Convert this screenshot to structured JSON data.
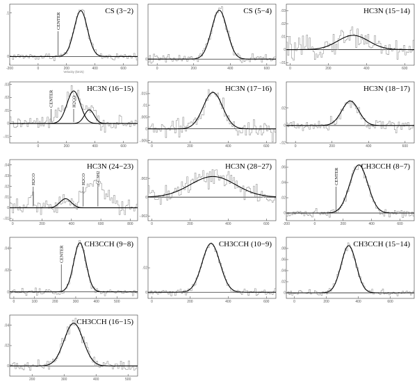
{
  "figure": {
    "chart_data": [
      {
        "type": "line",
        "title": "CS (3−2)",
        "xlabel": "Velocity (km/s)",
        "xlim": [
          -200,
          700
        ],
        "ylim": [
          -0.02,
          0.12
        ],
        "xticks": [
          -200,
          0,
          200,
          400,
          600
        ],
        "yticks": [
          0,
          0.1
        ],
        "fit": {
          "amp": 0.105,
          "center": 300,
          "fwhm": 110
        },
        "noise": 0.006,
        "annotations": [
          {
            "text": "CENTER",
            "x": 140
          }
        ]
      },
      {
        "type": "line",
        "title": "CS (5−4)",
        "xlim": [
          -50,
          650
        ],
        "ylim": [
          -0.01,
          0.09
        ],
        "xticks": [
          0,
          200,
          400,
          600
        ],
        "yticks": [
          0
        ],
        "fit": {
          "amp": 0.08,
          "center": 340,
          "fwhm": 100
        },
        "noise": 0.006,
        "annotations": []
      },
      {
        "type": "line",
        "title": "HC3N (15−14)",
        "xlim": [
          -20,
          650
        ],
        "ylim": [
          -0.012,
          0.035
        ],
        "xticks": [
          0,
          200,
          400,
          600
        ],
        "yticks": [
          -0.01,
          0,
          0.01,
          0.02,
          0.03
        ],
        "fit": {
          "amp": 0.011,
          "center": 330,
          "fwhm": 190
        },
        "noise": 0.006,
        "annotations": []
      },
      {
        "type": "line",
        "title": "HC3N (16−15)",
        "xlim": [
          -200,
          700
        ],
        "ylim": [
          -0.015,
          0.032
        ],
        "xticks": [
          0,
          200,
          400,
          600
        ],
        "yticks": [
          -0.01,
          0,
          0.01,
          0.02,
          0.03
        ],
        "fit": {
          "amp": 0.025,
          "center": 250,
          "fwhm": 110
        },
        "fit2": {
          "amp": 0.0105,
          "center": 360,
          "fwhm": 80
        },
        "noise": 0.004,
        "annotations": [
          {
            "text": "CENTER",
            "x": 90
          },
          {
            "text": "H2CO",
            "x": 250
          }
        ]
      },
      {
        "type": "line",
        "title": "HC3N (17−16)",
        "xlim": [
          -20,
          650
        ],
        "ylim": [
          -0.006,
          0.02
        ],
        "xticks": [
          0,
          200,
          400,
          600
        ],
        "yticks": [
          -0.005,
          0,
          0.005,
          0.01,
          0.015
        ],
        "fit": {
          "amp": 0.0155,
          "center": 320,
          "fwhm": 120
        },
        "noise": 0.003,
        "annotations": []
      },
      {
        "type": "line",
        "title": "HC3N (18−17)",
        "xlim": [
          -50,
          650
        ],
        "ylim": [
          -0.02,
          0.05
        ],
        "xticks": [
          0,
          200,
          400,
          600
        ],
        "yticks": [
          -0.02,
          0,
          0.02
        ],
        "fit": {
          "amp": 0.028,
          "center": 300,
          "fwhm": 110
        },
        "noise": 0.005,
        "annotations": []
      },
      {
        "type": "line",
        "title": "HC3N (24−23)",
        "xlim": [
          -20,
          850
        ],
        "ylim": [
          -0.012,
          0.045
        ],
        "xticks": [
          0,
          200,
          400,
          600,
          800
        ],
        "yticks": [
          -0.01,
          0,
          0.01,
          0.02,
          0.03,
          0.04
        ],
        "fit": {
          "amp": 0.0085,
          "center": 360,
          "fwhm": 90
        },
        "noise": 0.005,
        "annotations": [
          {
            "text": "H2CO",
            "x": 140
          },
          {
            "text": "H2CO",
            "x": 480
          },
          {
            "text": "c-C3H2",
            "x": 580
          }
        ]
      },
      {
        "type": "line",
        "title": "HC3N (28−27)",
        "xlim": [
          -20,
          650
        ],
        "ylim": [
          -0.0025,
          0.004
        ],
        "xticks": [
          0,
          200,
          400,
          600
        ],
        "yticks": [
          -0.002,
          0,
          0.002
        ],
        "fit": {
          "amp": 0.0022,
          "center": 320,
          "fwhm": 280
        },
        "noise": 0.0009,
        "annotations": []
      },
      {
        "type": "line",
        "title": "CH3CCH (8−7)",
        "xlim": [
          -200,
          700
        ],
        "ylim": [
          -0.01,
          0.07
        ],
        "xticks": [
          -200,
          0,
          200,
          400,
          600
        ],
        "yticks": [
          0,
          0.02,
          0.04,
          0.06
        ],
        "fit": {
          "amp": 0.063,
          "center": 310,
          "fwhm": 150
        },
        "noise": 0.004,
        "annotations": [
          {
            "text": "CENTER",
            "x": 150
          }
        ]
      },
      {
        "type": "line",
        "title": "CH3CCH (9−8)",
        "xlim": [
          -20,
          600
        ],
        "ylim": [
          -0.006,
          0.05
        ],
        "xticks": [
          0,
          100,
          200,
          300,
          400,
          500
        ],
        "yticks": [
          0,
          0.02,
          0.04
        ],
        "fit": {
          "amp": 0.045,
          "center": 320,
          "fwhm": 70
        },
        "noise": 0.0025,
        "annotations": [
          {
            "text": "CENTER",
            "x": 230
          }
        ]
      },
      {
        "type": "line",
        "title": "CH3CCH (10−9)",
        "xlim": [
          -20,
          650
        ],
        "ylim": [
          -0.005,
          0.045
        ],
        "xticks": [
          0,
          200,
          400,
          600
        ],
        "yticks": [
          0,
          0.02
        ],
        "fit": {
          "amp": 0.04,
          "center": 310,
          "fwhm": 110
        },
        "noise": 0.002,
        "annotations": []
      },
      {
        "type": "line",
        "title": "CH3CCH (15−14)",
        "xlim": [
          -50,
          750
        ],
        "ylim": [
          -0.01,
          0.1
        ],
        "xticks": [
          0,
          200,
          400,
          600
        ],
        "yticks": [
          0,
          0.02,
          0.04,
          0.06,
          0.08
        ],
        "fit": {
          "amp": 0.085,
          "center": 340,
          "fwhm": 110
        },
        "noise": 0.004,
        "annotations": []
      },
      {
        "type": "line",
        "title": "CH3CCH (16−15)",
        "xlim": [
          130,
          530
        ],
        "ylim": [
          -0.01,
          0.05
        ],
        "xticks": [
          200,
          300,
          400,
          500
        ],
        "yticks": [
          0,
          0.02,
          0.04
        ],
        "fit": {
          "amp": 0.042,
          "center": 330,
          "fwhm": 70
        },
        "noise": 0.004,
        "annotations": []
      }
    ]
  }
}
